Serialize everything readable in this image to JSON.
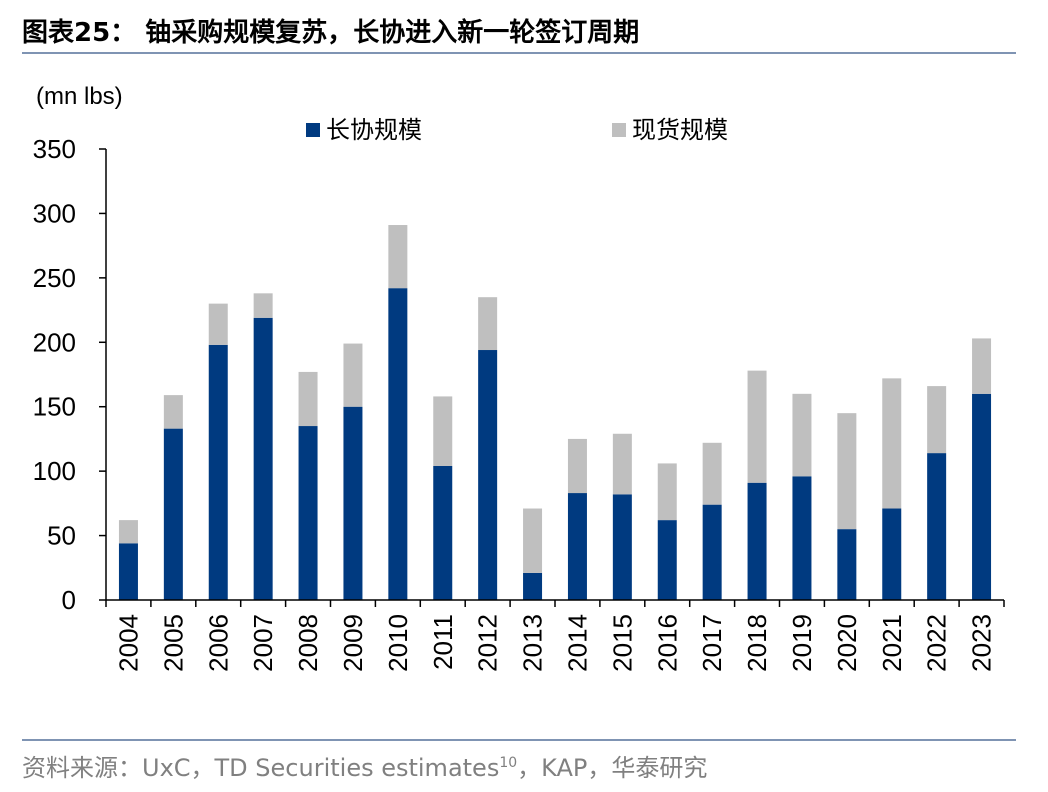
{
  "header": {
    "title": "图表25： 铀采购规模复苏，长协进入新一轮签订周期"
  },
  "footer": {
    "source_prefix": "资料来源：UxC，TD Securities estimates",
    "source_sup": "10",
    "source_suffix": "，KAP，华泰研究"
  },
  "chart_data": {
    "type": "bar",
    "stacked": true,
    "unit_label": "(mn lbs)",
    "categories": [
      "2004",
      "2005",
      "2006",
      "2007",
      "2008",
      "2009",
      "2010",
      "2011",
      "2012",
      "2013",
      "2014",
      "2015",
      "2016",
      "2017",
      "2018",
      "2019",
      "2020",
      "2021",
      "2022",
      "2023"
    ],
    "series": [
      {
        "name": "长协规模",
        "color": "#003a80",
        "values": [
          44,
          133,
          198,
          219,
          135,
          150,
          242,
          104,
          194,
          21,
          83,
          82,
          62,
          74,
          91,
          96,
          55,
          71,
          114,
          160
        ]
      },
      {
        "name": "现货规模",
        "color": "#bfbfbf",
        "values": [
          18,
          26,
          32,
          19,
          42,
          49,
          49,
          54,
          41,
          50,
          42,
          47,
          44,
          48,
          87,
          64,
          90,
          101,
          52,
          43
        ]
      }
    ],
    "ylim": [
      0,
      350
    ],
    "yticks": [
      0,
      50,
      100,
      150,
      200,
      250,
      300,
      350
    ],
    "legend_position": "top-center",
    "grid": false
  }
}
